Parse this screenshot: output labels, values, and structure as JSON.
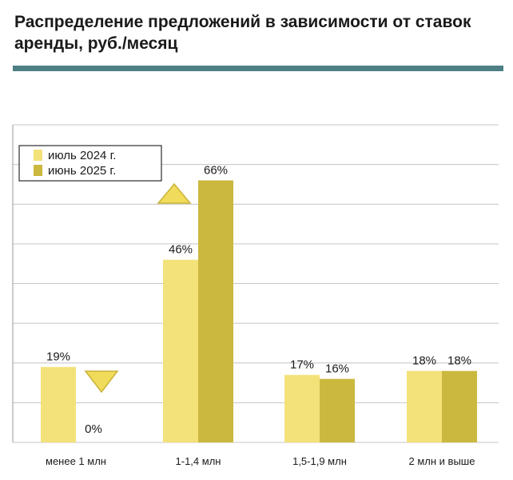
{
  "header": {
    "title": "Распределение предложений в зависимости от ставок аренды, руб./месяц"
  },
  "colors": {
    "accent_rule": "#4d7f85",
    "series_2024": "#f3e27a",
    "series_2025": "#cbb83e",
    "marker_fill": "#f0dc5a",
    "marker_stroke": "#c9b23a"
  },
  "chart_data": {
    "type": "bar",
    "title": "Распределение предложений в зависимости от ставок аренды, руб./месяц",
    "xlabel": "",
    "ylabel": "",
    "ylim": [
      0,
      80
    ],
    "grid": true,
    "legend": "top-left",
    "categories": [
      "менее 1 млн",
      "1-1,4 млн",
      "1,5-1,9 млн",
      "2 млн и выше"
    ],
    "series": [
      {
        "name": "июль 2024 г.",
        "values": [
          19,
          46,
          17,
          18
        ],
        "labels": [
          "19%",
          "46%",
          "17%",
          "18%"
        ]
      },
      {
        "name": "июнь 2025 г.",
        "values": [
          0,
          66,
          16,
          18
        ],
        "labels": [
          "0%",
          "66%",
          "16%",
          "18%"
        ]
      }
    ],
    "annotations": [
      {
        "category": "менее 1 млн",
        "marker": "down-triangle"
      },
      {
        "category": "1-1,4 млн",
        "marker": "up-triangle"
      }
    ]
  }
}
